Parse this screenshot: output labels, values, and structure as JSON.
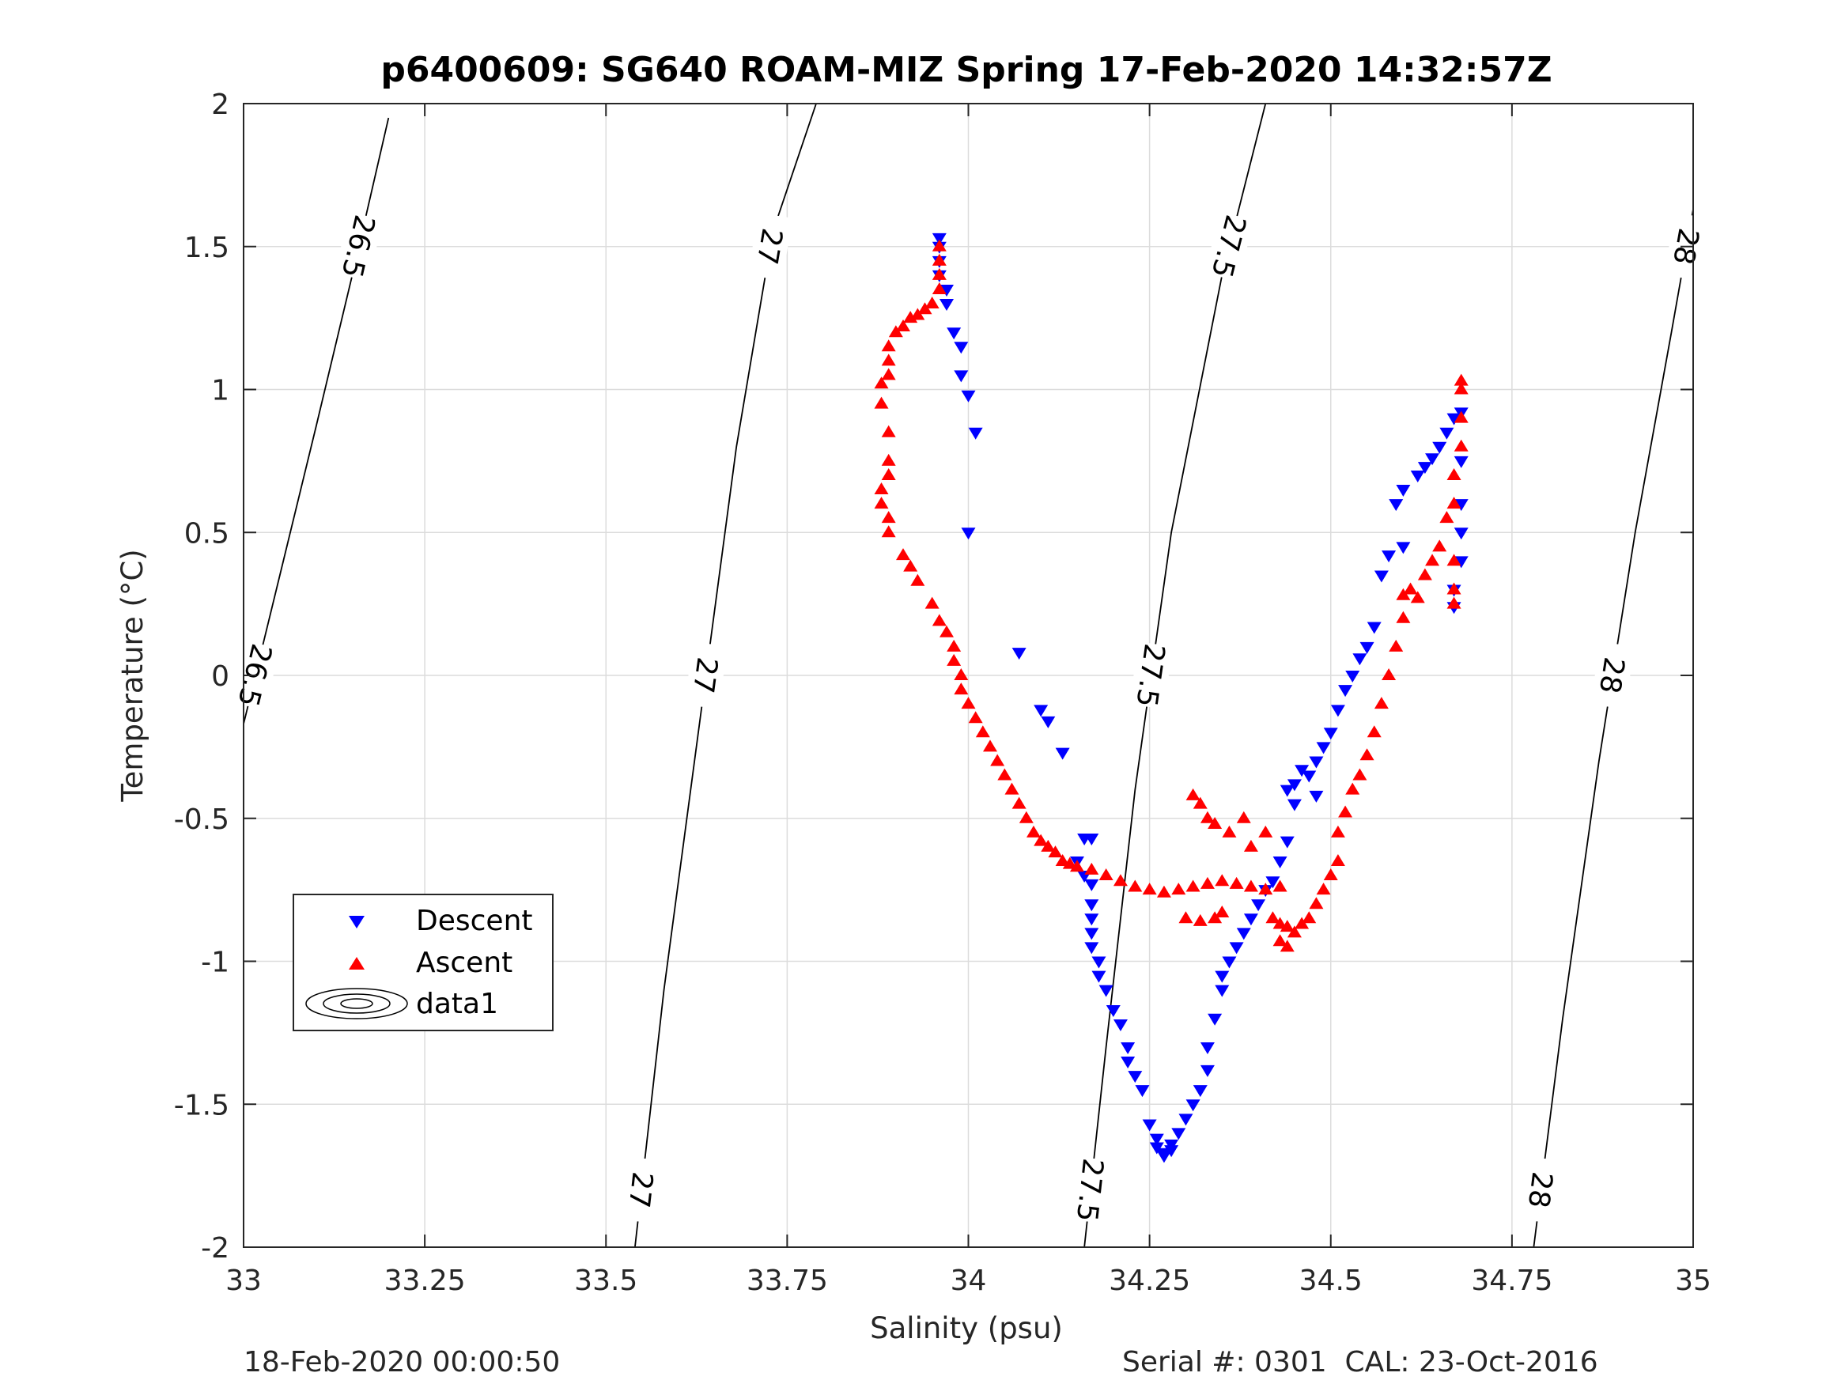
{
  "chart_data": {
    "type": "scatter",
    "title": "p6400609: SG640 ROAM-MIZ Spring 17-Feb-2020 14:32:57Z",
    "xlabel": "Salinity (psu)",
    "ylabel": "Temperature (°C)",
    "xlim": [
      33,
      35
    ],
    "ylim": [
      -2,
      2
    ],
    "x_ticks": [
      "33",
      "33.25",
      "33.5",
      "33.75",
      "34",
      "34.25",
      "34.5",
      "34.75",
      "35"
    ],
    "y_ticks": [
      "-2",
      "-1.5",
      "-1",
      "-0.5",
      "0",
      "0.5",
      "1",
      "1.5",
      "2"
    ],
    "grid": true,
    "legend_position": "lower-left",
    "legend": [
      "Descent",
      "Ascent",
      "data1"
    ],
    "series": [
      {
        "name": "Descent",
        "marker": "triangle-down",
        "color": "#0000ff",
        "points": [
          [
            33.96,
            1.53
          ],
          [
            33.96,
            1.5
          ],
          [
            33.96,
            1.45
          ],
          [
            33.96,
            1.4
          ],
          [
            33.97,
            1.35
          ],
          [
            33.97,
            1.3
          ],
          [
            33.98,
            1.2
          ],
          [
            33.99,
            1.15
          ],
          [
            33.99,
            1.05
          ],
          [
            34.0,
            0.98
          ],
          [
            34.01,
            0.85
          ],
          [
            34.0,
            0.5
          ],
          [
            34.07,
            0.08
          ],
          [
            34.1,
            -0.12
          ],
          [
            34.11,
            -0.16
          ],
          [
            34.13,
            -0.27
          ],
          [
            34.16,
            -0.57
          ],
          [
            34.17,
            -0.57
          ],
          [
            34.15,
            -0.65
          ],
          [
            34.16,
            -0.7
          ],
          [
            34.17,
            -0.73
          ],
          [
            34.17,
            -0.8
          ],
          [
            34.17,
            -0.85
          ],
          [
            34.17,
            -0.9
          ],
          [
            34.17,
            -0.95
          ],
          [
            34.18,
            -1.0
          ],
          [
            34.18,
            -1.05
          ],
          [
            34.19,
            -1.1
          ],
          [
            34.2,
            -1.17
          ],
          [
            34.21,
            -1.22
          ],
          [
            34.22,
            -1.3
          ],
          [
            34.22,
            -1.35
          ],
          [
            34.23,
            -1.4
          ],
          [
            34.24,
            -1.45
          ],
          [
            34.25,
            -1.57
          ],
          [
            34.26,
            -1.62
          ],
          [
            34.26,
            -1.65
          ],
          [
            34.27,
            -1.67
          ],
          [
            34.27,
            -1.68
          ],
          [
            34.28,
            -1.66
          ],
          [
            34.28,
            -1.64
          ],
          [
            34.29,
            -1.6
          ],
          [
            34.3,
            -1.55
          ],
          [
            34.31,
            -1.5
          ],
          [
            34.32,
            -1.45
          ],
          [
            34.33,
            -1.38
          ],
          [
            34.33,
            -1.3
          ],
          [
            34.34,
            -1.2
          ],
          [
            34.35,
            -1.1
          ],
          [
            34.35,
            -1.05
          ],
          [
            34.36,
            -1.0
          ],
          [
            34.37,
            -0.95
          ],
          [
            34.38,
            -0.9
          ],
          [
            34.39,
            -0.85
          ],
          [
            34.4,
            -0.8
          ],
          [
            34.41,
            -0.75
          ],
          [
            34.42,
            -0.72
          ],
          [
            34.43,
            -0.65
          ],
          [
            34.44,
            -0.58
          ],
          [
            34.45,
            -0.45
          ],
          [
            34.44,
            -0.4
          ],
          [
            34.45,
            -0.38
          ],
          [
            34.46,
            -0.33
          ],
          [
            34.47,
            -0.35
          ],
          [
            34.48,
            -0.42
          ],
          [
            34.48,
            -0.3
          ],
          [
            34.49,
            -0.25
          ],
          [
            34.5,
            -0.2
          ],
          [
            34.51,
            -0.12
          ],
          [
            34.52,
            -0.05
          ],
          [
            34.53,
            0.0
          ],
          [
            34.54,
            0.06
          ],
          [
            34.55,
            0.1
          ],
          [
            34.56,
            0.17
          ],
          [
            34.57,
            0.35
          ],
          [
            34.58,
            0.42
          ],
          [
            34.6,
            0.45
          ],
          [
            34.59,
            0.6
          ],
          [
            34.6,
            0.65
          ],
          [
            34.62,
            0.7
          ],
          [
            34.63,
            0.73
          ],
          [
            34.64,
            0.76
          ],
          [
            34.65,
            0.8
          ],
          [
            34.66,
            0.85
          ],
          [
            34.67,
            0.9
          ],
          [
            34.68,
            0.92
          ],
          [
            34.68,
            0.75
          ],
          [
            34.68,
            0.6
          ],
          [
            34.68,
            0.5
          ],
          [
            34.68,
            0.4
          ],
          [
            34.67,
            0.3
          ],
          [
            34.67,
            0.24
          ]
        ]
      },
      {
        "name": "Ascent",
        "marker": "triangle-up",
        "color": "#ff0000",
        "points": [
          [
            33.96,
            1.5
          ],
          [
            33.96,
            1.45
          ],
          [
            33.96,
            1.4
          ],
          [
            33.96,
            1.35
          ],
          [
            33.95,
            1.3
          ],
          [
            33.94,
            1.28
          ],
          [
            33.93,
            1.26
          ],
          [
            33.92,
            1.25
          ],
          [
            33.91,
            1.22
          ],
          [
            33.9,
            1.2
          ],
          [
            33.89,
            1.15
          ],
          [
            33.89,
            1.1
          ],
          [
            33.89,
            1.05
          ],
          [
            33.88,
            1.02
          ],
          [
            33.88,
            0.95
          ],
          [
            33.89,
            0.85
          ],
          [
            33.89,
            0.75
          ],
          [
            33.89,
            0.7
          ],
          [
            33.88,
            0.65
          ],
          [
            33.88,
            0.6
          ],
          [
            33.89,
            0.55
          ],
          [
            33.89,
            0.5
          ],
          [
            33.91,
            0.42
          ],
          [
            33.92,
            0.38
          ],
          [
            33.93,
            0.33
          ],
          [
            33.95,
            0.25
          ],
          [
            33.96,
            0.19
          ],
          [
            33.97,
            0.15
          ],
          [
            33.98,
            0.1
          ],
          [
            33.98,
            0.05
          ],
          [
            33.99,
            0.0
          ],
          [
            33.99,
            -0.05
          ],
          [
            34.0,
            -0.1
          ],
          [
            34.01,
            -0.15
          ],
          [
            34.02,
            -0.2
          ],
          [
            34.03,
            -0.25
          ],
          [
            34.04,
            -0.3
          ],
          [
            34.05,
            -0.35
          ],
          [
            34.06,
            -0.4
          ],
          [
            34.07,
            -0.45
          ],
          [
            34.08,
            -0.5
          ],
          [
            34.09,
            -0.55
          ],
          [
            34.1,
            -0.58
          ],
          [
            34.11,
            -0.6
          ],
          [
            34.12,
            -0.62
          ],
          [
            34.13,
            -0.65
          ],
          [
            34.14,
            -0.66
          ],
          [
            34.15,
            -0.67
          ],
          [
            34.17,
            -0.68
          ],
          [
            34.19,
            -0.7
          ],
          [
            34.21,
            -0.72
          ],
          [
            34.23,
            -0.74
          ],
          [
            34.25,
            -0.75
          ],
          [
            34.27,
            -0.76
          ],
          [
            34.29,
            -0.75
          ],
          [
            34.31,
            -0.74
          ],
          [
            34.33,
            -0.73
          ],
          [
            34.35,
            -0.72
          ],
          [
            34.37,
            -0.73
          ],
          [
            34.39,
            -0.74
          ],
          [
            34.41,
            -0.75
          ],
          [
            34.43,
            -0.74
          ],
          [
            34.31,
            -0.42
          ],
          [
            34.32,
            -0.45
          ],
          [
            34.33,
            -0.5
          ],
          [
            34.34,
            -0.52
          ],
          [
            34.36,
            -0.55
          ],
          [
            34.38,
            -0.5
          ],
          [
            34.39,
            -0.6
          ],
          [
            34.41,
            -0.55
          ],
          [
            34.3,
            -0.85
          ],
          [
            34.32,
            -0.86
          ],
          [
            34.34,
            -0.85
          ],
          [
            34.35,
            -0.83
          ],
          [
            34.42,
            -0.85
          ],
          [
            34.43,
            -0.87
          ],
          [
            34.44,
            -0.88
          ],
          [
            34.45,
            -0.9
          ],
          [
            34.46,
            -0.87
          ],
          [
            34.47,
            -0.85
          ],
          [
            34.48,
            -0.8
          ],
          [
            34.49,
            -0.75
          ],
          [
            34.5,
            -0.7
          ],
          [
            34.51,
            -0.65
          ],
          [
            34.51,
            -0.55
          ],
          [
            34.52,
            -0.48
          ],
          [
            34.53,
            -0.4
          ],
          [
            34.54,
            -0.35
          ],
          [
            34.55,
            -0.28
          ],
          [
            34.56,
            -0.2
          ],
          [
            34.57,
            -0.1
          ],
          [
            34.58,
            0.0
          ],
          [
            34.59,
            0.1
          ],
          [
            34.6,
            0.2
          ],
          [
            34.6,
            0.28
          ],
          [
            34.61,
            0.3
          ],
          [
            34.62,
            0.27
          ],
          [
            34.63,
            0.35
          ],
          [
            34.64,
            0.4
          ],
          [
            34.65,
            0.45
          ],
          [
            34.66,
            0.55
          ],
          [
            34.67,
            0.6
          ],
          [
            34.67,
            0.7
          ],
          [
            34.68,
            0.8
          ],
          [
            34.68,
            0.9
          ],
          [
            34.68,
            1.0
          ],
          [
            34.68,
            1.03
          ],
          [
            34.67,
            0.4
          ],
          [
            34.67,
            0.3
          ],
          [
            34.67,
            0.25
          ],
          [
            34.44,
            -0.95
          ],
          [
            34.43,
            -0.93
          ]
        ]
      }
    ],
    "contours": {
      "name": "data1",
      "color": "#000000",
      "levels": [
        {
          "label": "26.5",
          "points": [
            [
              33.0,
              -0.17
            ],
            [
              33.05,
              0.35
            ],
            [
              33.1,
              0.87
            ],
            [
              33.15,
              1.4
            ],
            [
              33.2,
              1.95
            ]
          ]
        },
        {
          "label": "27",
          "points": [
            [
              33.54,
              -2.0
            ],
            [
              33.58,
              -1.1
            ],
            [
              33.63,
              -0.15
            ],
            [
              33.68,
              0.8
            ],
            [
              33.73,
              1.55
            ],
            [
              33.79,
              2.0
            ]
          ]
        },
        {
          "label": "27.5",
          "points": [
            [
              34.16,
              -2.0
            ],
            [
              34.19,
              -1.3
            ],
            [
              34.23,
              -0.4
            ],
            [
              34.28,
              0.5
            ],
            [
              34.35,
              1.4
            ],
            [
              34.41,
              2.0
            ]
          ]
        },
        {
          "label": "28",
          "points": [
            [
              34.78,
              -2.0
            ],
            [
              34.82,
              -1.2
            ],
            [
              34.87,
              -0.3
            ],
            [
              34.92,
              0.5
            ],
            [
              34.97,
              1.2
            ],
            [
              35.0,
              1.63
            ]
          ]
        }
      ]
    }
  },
  "footer": {
    "left": "18-Feb-2020 00:00:50",
    "right": "Serial #: 0301  CAL: 23-Oct-2016"
  }
}
